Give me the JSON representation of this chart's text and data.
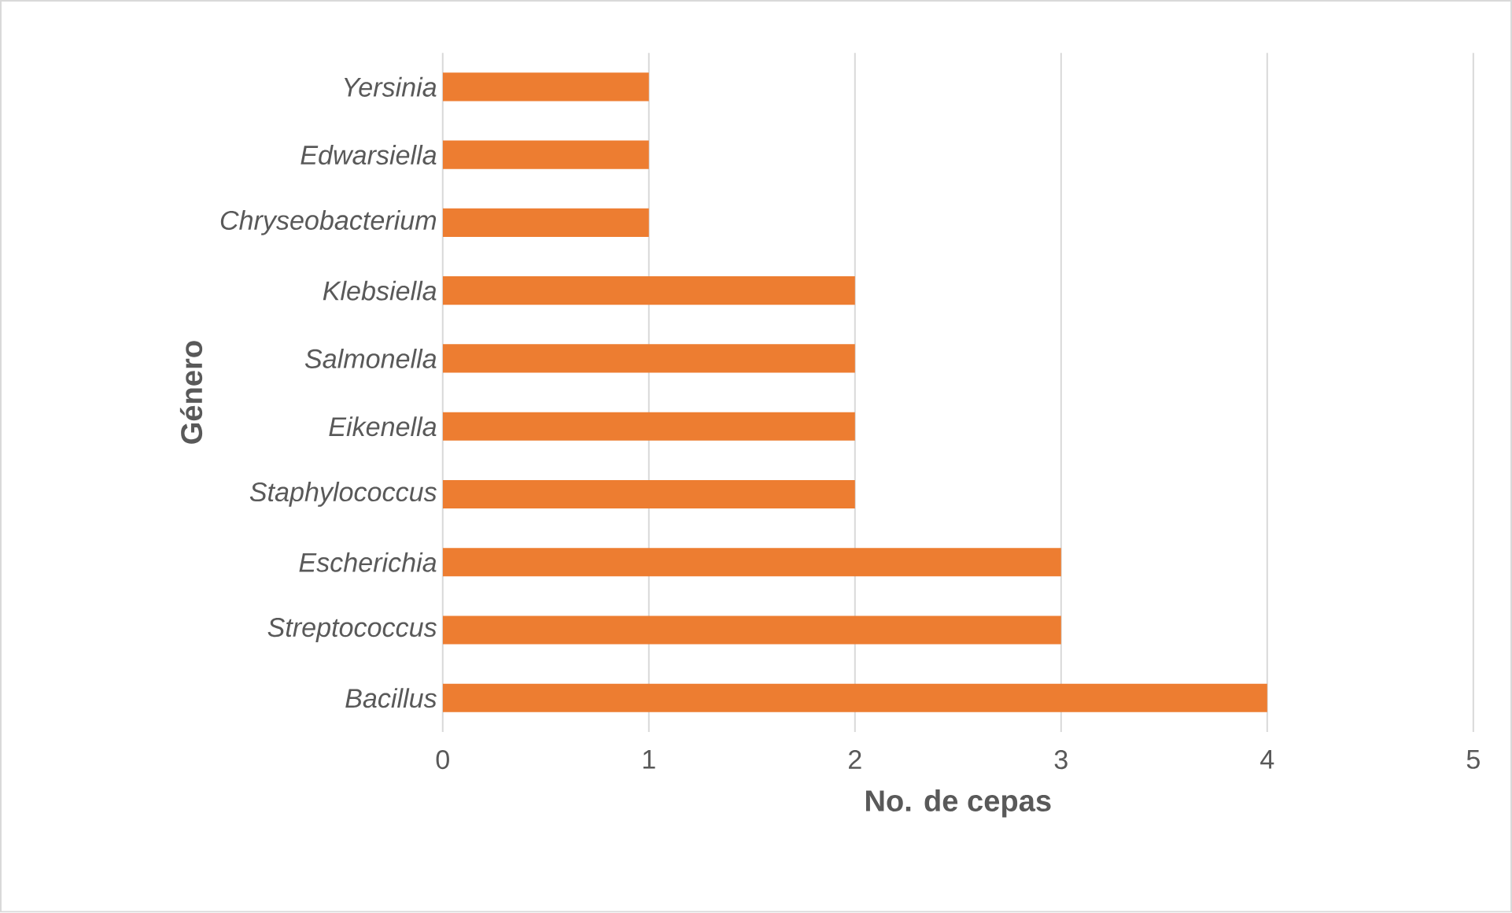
{
  "chart_data": {
    "type": "bar",
    "orientation": "horizontal",
    "xlabel": "No. de cepas",
    "ylabel": "Género",
    "categories": [
      "Yersinia",
      "Edwarsiella",
      "Chryseobacterium",
      "Klebsiella",
      "Salmonella",
      "Eikenella",
      "Staphylococcus",
      "Escherichia",
      "Streptococcus",
      "Bacillus"
    ],
    "values": [
      1,
      1,
      1,
      2,
      2,
      2,
      2,
      3,
      3,
      4
    ],
    "color": "#ed7d31",
    "xlim": [
      0,
      5
    ],
    "xticks": [
      0,
      1,
      2,
      3,
      4,
      5
    ],
    "grid": "x"
  }
}
